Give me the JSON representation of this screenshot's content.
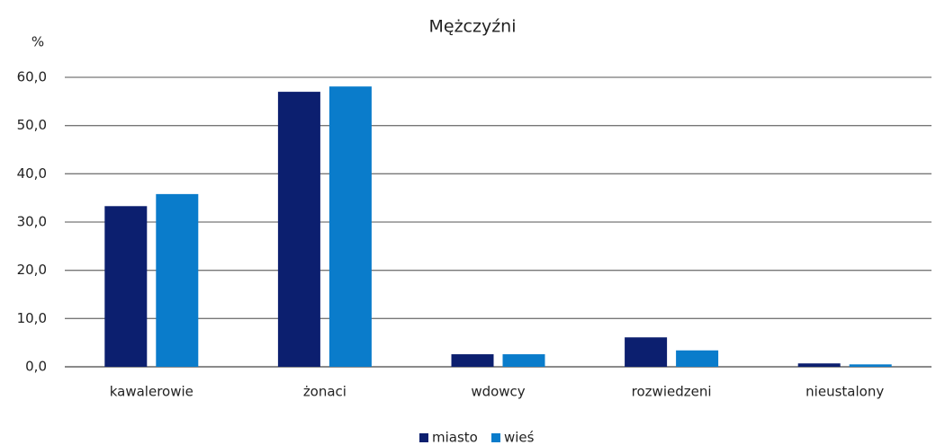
{
  "chart_data": {
    "type": "bar",
    "title": "Mężczyźni",
    "y_label": "%",
    "categories": [
      "kawalerowie",
      "żonaci",
      "wdowcy",
      "rozwiedzeni",
      "nieustalony"
    ],
    "series": [
      {
        "name": "miasto",
        "color": "#0c1f6f",
        "values": [
          33.3,
          57.0,
          2.6,
          6.1,
          0.7
        ]
      },
      {
        "name": "wieś",
        "color": "#0a7ccb",
        "values": [
          35.8,
          58.1,
          2.6,
          3.4,
          0.5
        ]
      }
    ],
    "ylim": [
      0,
      60
    ],
    "yticks": [
      {
        "value": 0,
        "label": "0,0"
      },
      {
        "value": 10,
        "label": "10,0"
      },
      {
        "value": 20,
        "label": "20,0"
      },
      {
        "value": 30,
        "label": "30,0"
      },
      {
        "value": 40,
        "label": "40,0"
      },
      {
        "value": 50,
        "label": "50,0"
      },
      {
        "value": 60,
        "label": "60,0"
      }
    ],
    "grid": true,
    "legend": "bottom"
  }
}
